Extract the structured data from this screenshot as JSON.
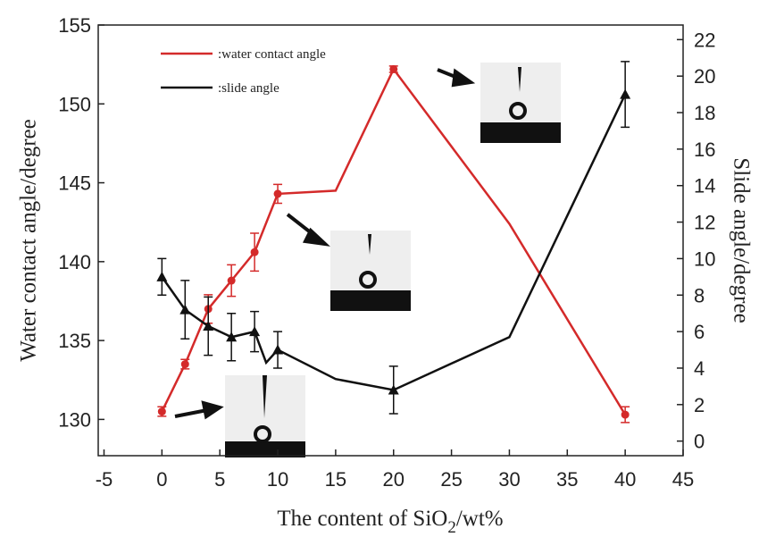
{
  "chart_data": {
    "type": "line",
    "x_label": {
      "text": "The content of SiO",
      "sub": "2",
      "suffix": "/wt%"
    },
    "y_label": "Water contact angle/degree",
    "y2_label": "Slide angle/degree",
    "xlim": [
      -5.5,
      45
    ],
    "xticks": [
      -5,
      0,
      5,
      10,
      15,
      20,
      25,
      30,
      35,
      40,
      45
    ],
    "ylim": [
      127.7,
      155
    ],
    "yticks": [
      130,
      135,
      140,
      145,
      150,
      155
    ],
    "y2lim": [
      -0.8,
      22.8
    ],
    "y2ticks": [
      0,
      2,
      4,
      6,
      8,
      10,
      12,
      14,
      16,
      18,
      20,
      22
    ],
    "series": [
      {
        "name": ":water contact angle",
        "color": "#d42a2a",
        "marker": "circle",
        "x": [
          0,
          2,
          4,
          6,
          8,
          10,
          15,
          20,
          30,
          40
        ],
        "values": [
          130.5,
          133.5,
          137,
          138.8,
          140.6,
          144.3,
          144.5,
          152.2,
          142.4,
          130.3
        ],
        "errors": [
          0.3,
          0.3,
          0.9,
          1,
          1.2,
          0.6,
          null,
          0.2,
          null,
          0.5
        ]
      },
      {
        "name": ":slide angle",
        "color": "#111111",
        "marker": "triangle",
        "axis": "y2",
        "x": [
          0,
          2,
          4,
          6,
          8,
          9,
          10,
          15,
          20,
          30,
          40
        ],
        "values": [
          9,
          7.2,
          6.3,
          5.7,
          6,
          4.3,
          5,
          3.4,
          2.8,
          5.7,
          19
        ],
        "errors": [
          1,
          1.6,
          1.6,
          1.3,
          1.1,
          null,
          1,
          null,
          1.3,
          null,
          1.8
        ]
      }
    ]
  }
}
